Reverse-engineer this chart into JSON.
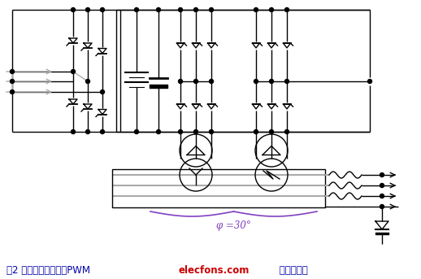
{
  "bg_color": "#ffffff",
  "line_color": "#000000",
  "gray_color": "#aaaaaa",
  "red_color": "#cc0000",
  "blue_color": "#0000aa",
  "purple_color": "#8040c0",
  "fig_width": 5.18,
  "fig_height": 3.43,
  "dpi": 100,
  "caption_text": "图2 只用两个变压器的PWM",
  "watermark_text": "elecfons.com",
  "caption_suffix": " 电子发烧友",
  "phi_text": "φ =30°"
}
